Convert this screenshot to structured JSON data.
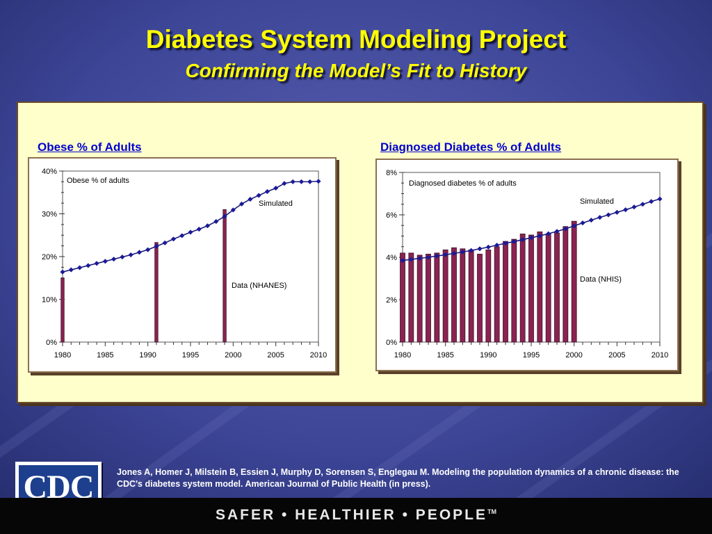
{
  "slide": {
    "title": "Diabetes System Modeling Project",
    "subtitle": "Confirming the Model’s Fit to History",
    "citation": "Jones A, Homer J, Milstein B, Essien J, Murphy D, Sorensen S, Englegau M. Modeling the population dynamics of a chronic disease: the CDC's diabetes system model. American Journal of Public Health (in press).",
    "logo_text": "CDC",
    "slogan": "SAFER • HEALTHIER • PEOPLE",
    "slogan_tm": "TM"
  },
  "colors": {
    "title": "#ffff00",
    "panel": "#ffffcc",
    "heading": "#0000cc",
    "line": "#1a1a7a",
    "bar": "#8b2352"
  },
  "chart_data": [
    {
      "type": "bar",
      "heading": "Obese % of Adults",
      "inner_title": "Obese % of adults",
      "series": [
        {
          "name": "Simulated",
          "type": "line",
          "x": [
            1980,
            1981,
            1982,
            1983,
            1984,
            1985,
            1986,
            1987,
            1988,
            1989,
            1990,
            1991,
            1992,
            1993,
            1994,
            1995,
            1996,
            1997,
            1998,
            1999,
            2000,
            2001,
            2002,
            2003,
            2004,
            2005,
            2006,
            2007,
            2008,
            2009,
            2010
          ],
          "values": [
            16.4,
            16.9,
            17.4,
            17.9,
            18.4,
            18.9,
            19.4,
            19.9,
            20.4,
            21.0,
            21.6,
            22.4,
            23.2,
            24.1,
            24.9,
            25.7,
            26.4,
            27.2,
            28.2,
            29.4,
            30.9,
            32.3,
            33.4,
            34.3,
            35.2,
            36.0,
            37.1,
            37.5,
            37.5,
            37.5,
            37.6
          ]
        },
        {
          "name": "Data (NHANES)",
          "type": "bar",
          "x": [
            1980,
            1991,
            1999
          ],
          "values": [
            15.0,
            23.3,
            31.0
          ]
        }
      ],
      "series_labels": {
        "simulated": "Simulated",
        "data": "Data (NHANES)"
      },
      "xlim": [
        1980,
        2010
      ],
      "ylim": [
        0,
        40
      ],
      "x_ticks": [
        "1980",
        "1985",
        "1990",
        "1995",
        "2000",
        "2005",
        "2010"
      ],
      "y_ticks": [
        "0%",
        "10%",
        "20%",
        "30%",
        "40%"
      ]
    },
    {
      "type": "bar",
      "heading": "Diagnosed Diabetes % of Adults",
      "inner_title": "Diagnosed diabetes % of adults",
      "series": [
        {
          "name": "Simulated",
          "type": "line",
          "x": [
            1980,
            1981,
            1982,
            1983,
            1984,
            1985,
            1986,
            1987,
            1988,
            1989,
            1990,
            1991,
            1992,
            1993,
            1994,
            1995,
            1996,
            1997,
            1998,
            1999,
            2000,
            2001,
            2002,
            2003,
            2004,
            2005,
            2006,
            2007,
            2008,
            2009,
            2010
          ],
          "values": [
            3.85,
            3.9,
            3.95,
            4.0,
            4.06,
            4.12,
            4.18,
            4.25,
            4.32,
            4.4,
            4.48,
            4.57,
            4.66,
            4.74,
            4.83,
            4.92,
            5.01,
            5.11,
            5.22,
            5.34,
            5.48,
            5.62,
            5.75,
            5.88,
            6.0,
            6.12,
            6.24,
            6.37,
            6.5,
            6.63,
            6.75
          ]
        },
        {
          "name": "Data (NHIS)",
          "type": "bar",
          "x": [
            1980,
            1981,
            1982,
            1983,
            1984,
            1985,
            1986,
            1987,
            1988,
            1989,
            1990,
            1991,
            1992,
            1993,
            1994,
            1995,
            1996,
            1997,
            1998,
            1999,
            2000
          ],
          "values": [
            4.2,
            4.2,
            4.1,
            4.15,
            4.2,
            4.35,
            4.45,
            4.4,
            4.35,
            4.15,
            4.35,
            4.5,
            4.75,
            4.85,
            5.1,
            5.05,
            5.2,
            5.1,
            5.15,
            5.45,
            5.7
          ]
        }
      ],
      "series_labels": {
        "simulated": "Simulated",
        "data": "Data (NHIS)"
      },
      "xlim": [
        1980,
        2010
      ],
      "ylim": [
        0,
        8
      ],
      "x_ticks": [
        "1980",
        "1985",
        "1990",
        "1995",
        "2000",
        "2005",
        "2010"
      ],
      "y_ticks": [
        "0%",
        "2%",
        "4%",
        "6%",
        "8%"
      ]
    }
  ]
}
